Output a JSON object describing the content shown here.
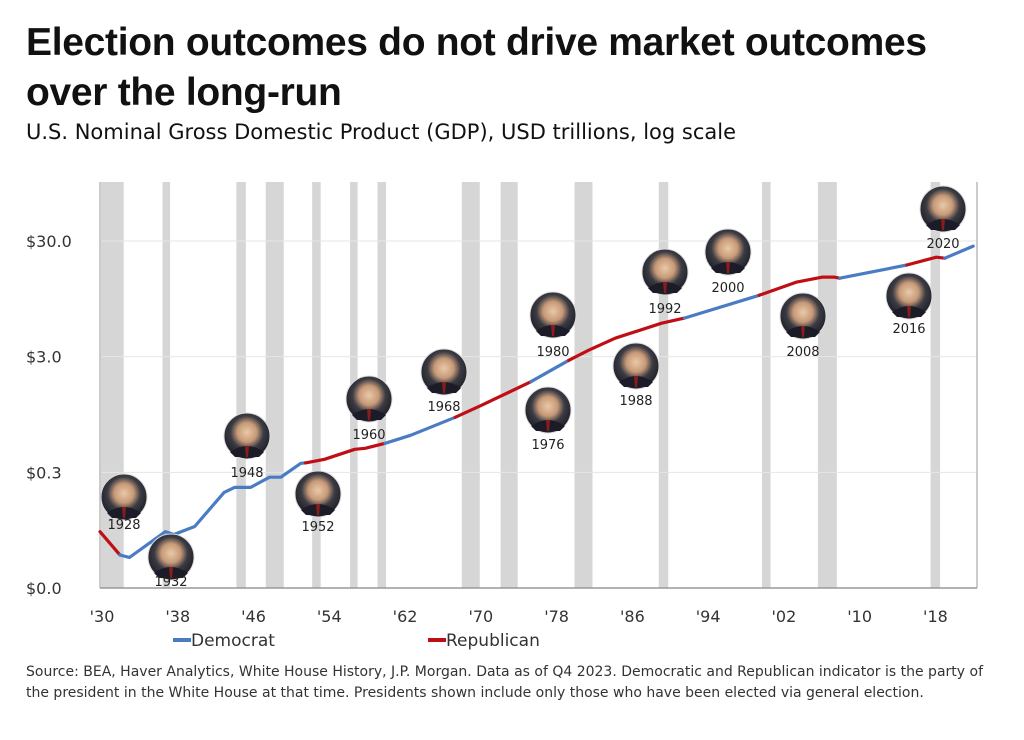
{
  "title": "Election outcomes do not drive market outcomes over the long-run",
  "subtitle": "U.S. Nominal Gross Domestic Product (GDP), USD trillions, log scale",
  "source": "Source: BEA, Haver Analytics, White House History, J.P. Morgan. Data as of Q4 2023. Democratic and Republican indicator is the party of the president in the White House at that time. Presidents shown include only those who have been elected via general election.",
  "chart_data": {
    "type": "line",
    "title": "U.S. Nominal Gross Domestic Product (GDP), USD trillions, log scale",
    "xlabel": "",
    "ylabel": "",
    "y_scale": "log",
    "xlim": [
      1930,
      2022.6
    ],
    "ylim": [
      0.03,
      97
    ],
    "grid": "horizontal",
    "legend_placement": "bottom",
    "x_ticks": [
      {
        "value": 1930,
        "label": "'30"
      },
      {
        "value": 1938,
        "label": "'38"
      },
      {
        "value": 1946,
        "label": "'46"
      },
      {
        "value": 1954,
        "label": "'54"
      },
      {
        "value": 1962,
        "label": "'62"
      },
      {
        "value": 1970,
        "label": "'70"
      },
      {
        "value": 1978,
        "label": "'78"
      },
      {
        "value": 1986,
        "label": "'86"
      },
      {
        "value": 1994,
        "label": "'94"
      },
      {
        "value": 2002,
        "label": "'02"
      },
      {
        "value": 2010,
        "label": "'10"
      },
      {
        "value": 2018,
        "label": "'18"
      }
    ],
    "y_ticks": [
      {
        "value": 30,
        "label": "$30.0"
      },
      {
        "value": 3,
        "label": "$3.0"
      },
      {
        "value": 0.3,
        "label": "$0.3"
      },
      {
        "value": 0.03,
        "label": "$0.0"
      }
    ],
    "colors": {
      "Democrat": "#4a7cc4",
      "Republican": "#c00f14",
      "recession": "#d6d6d6",
      "grid": "#e6e6e6"
    },
    "legend": [
      {
        "name": "Democrat"
      },
      {
        "name": "Republican"
      }
    ],
    "shaded_periods": [
      [
        1930.1,
        1932.5
      ],
      [
        1936.6,
        1937.4
      ],
      [
        1944.4,
        1945.4
      ],
      [
        1947.5,
        1949.4
      ],
      [
        1952.4,
        1953.3
      ],
      [
        1956.4,
        1957.2
      ],
      [
        1959.3,
        1960.2
      ],
      [
        1968.2,
        1970.1
      ],
      [
        1972.3,
        1974.1
      ],
      [
        1980.1,
        1982.0
      ],
      [
        1989.0,
        1990.0
      ],
      [
        1999.9,
        2000.8
      ],
      [
        2005.8,
        2007.8
      ],
      [
        2017.7,
        2018.7
      ]
    ],
    "segments": [
      {
        "party": "Republican",
        "points": [
          [
            1930.0,
            0.092
          ],
          [
            1932.1,
            0.058
          ]
        ]
      },
      {
        "party": "Democrat",
        "points": [
          [
            1932.1,
            0.058
          ],
          [
            1933.1,
            0.055
          ],
          [
            1936.9,
            0.092
          ],
          [
            1937.8,
            0.087
          ],
          [
            1940.0,
            0.102
          ],
          [
            1943.1,
            0.201
          ],
          [
            1944.2,
            0.222
          ],
          [
            1945.9,
            0.222
          ],
          [
            1947.9,
            0.272
          ],
          [
            1949.1,
            0.272
          ],
          [
            1951.2,
            0.359
          ],
          [
            1951.7,
            0.362
          ]
        ]
      },
      {
        "party": "Republican",
        "points": [
          [
            1951.7,
            0.362
          ],
          [
            1953.7,
            0.389
          ],
          [
            1956.9,
            0.474
          ],
          [
            1958.0,
            0.484
          ],
          [
            1960.1,
            0.535
          ]
        ]
      },
      {
        "party": "Democrat",
        "points": [
          [
            1960.1,
            0.535
          ],
          [
            1962.8,
            0.627
          ],
          [
            1967.5,
            0.897
          ]
        ]
      },
      {
        "party": "Republican",
        "points": [
          [
            1967.5,
            0.897
          ],
          [
            1970.3,
            1.14
          ],
          [
            1975.2,
            1.77
          ],
          [
            1975.5,
            1.82
          ]
        ]
      },
      {
        "party": "Democrat",
        "points": [
          [
            1975.5,
            1.82
          ],
          [
            1979.5,
            2.79
          ]
        ]
      },
      {
        "party": "Republican",
        "points": [
          [
            1979.5,
            2.79
          ],
          [
            1981.6,
            3.41
          ],
          [
            1984.4,
            4.33
          ],
          [
            1989.3,
            5.84
          ],
          [
            1991.7,
            6.46
          ]
        ]
      },
      {
        "party": "Democrat",
        "points": [
          [
            1991.7,
            6.46
          ],
          [
            1999.6,
            10.18
          ]
        ]
      },
      {
        "party": "Republican",
        "points": [
          [
            1999.6,
            10.18
          ],
          [
            2003.5,
            13.2
          ],
          [
            2006.3,
            14.6
          ],
          [
            2007.5,
            14.6
          ],
          [
            2008.1,
            14.3
          ]
        ]
      },
      {
        "party": "Democrat",
        "points": [
          [
            2008.1,
            14.3
          ],
          [
            2015.2,
            18.6
          ]
        ]
      },
      {
        "party": "Republican",
        "points": [
          [
            2015.2,
            18.6
          ],
          [
            2018.3,
            21.7
          ],
          [
            2019.2,
            21.3
          ]
        ]
      },
      {
        "party": "Democrat",
        "points": [
          [
            2019.2,
            21.3
          ],
          [
            2022.2,
            27.1
          ]
        ]
      }
    ],
    "annotations": [
      {
        "label": "1928",
        "icon": "president-portrait"
      },
      {
        "label": "1932",
        "icon": "president-portrait"
      },
      {
        "label": "1948",
        "icon": "president-portrait"
      },
      {
        "label": "1952",
        "icon": "president-portrait"
      },
      {
        "label": "1960",
        "icon": "president-portrait"
      },
      {
        "label": "1968",
        "icon": "president-portrait"
      },
      {
        "label": "1976",
        "icon": "president-portrait"
      },
      {
        "label": "1980",
        "icon": "president-portrait"
      },
      {
        "label": "1988",
        "icon": "president-portrait"
      },
      {
        "label": "1992",
        "icon": "president-portrait"
      },
      {
        "label": "2000",
        "icon": "president-portrait"
      },
      {
        "label": "2008",
        "icon": "president-portrait"
      },
      {
        "label": "2016",
        "icon": "president-portrait"
      },
      {
        "label": "2020",
        "icon": "president-portrait"
      }
    ]
  }
}
